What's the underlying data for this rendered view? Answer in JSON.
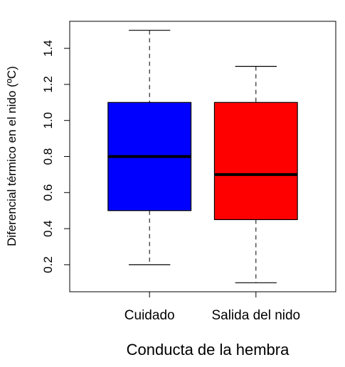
{
  "chart_data": {
    "type": "boxplot",
    "title": "",
    "xlabel": "Conducta de la hembra",
    "ylabel": "Diferencial térmico en el nido (ºC)",
    "ylim": [
      0.05,
      1.55
    ],
    "yticks": [
      "0.2",
      "0.4",
      "0.6",
      "0.8",
      "1.0",
      "1.2",
      "1.4"
    ],
    "grid": false,
    "legend": "none",
    "categories": [
      "Cuidado",
      "Salida del nido"
    ],
    "boxes": [
      {
        "category": "Cuidado",
        "min": 0.2,
        "q1": 0.5,
        "median": 0.8,
        "q3": 1.1,
        "max": 1.5,
        "color": "#0000FF"
      },
      {
        "category": "Salida del nido",
        "min": 0.1,
        "q1": 0.45,
        "median": 0.7,
        "q3": 1.1,
        "max": 1.3,
        "color": "#FF0000"
      }
    ]
  }
}
